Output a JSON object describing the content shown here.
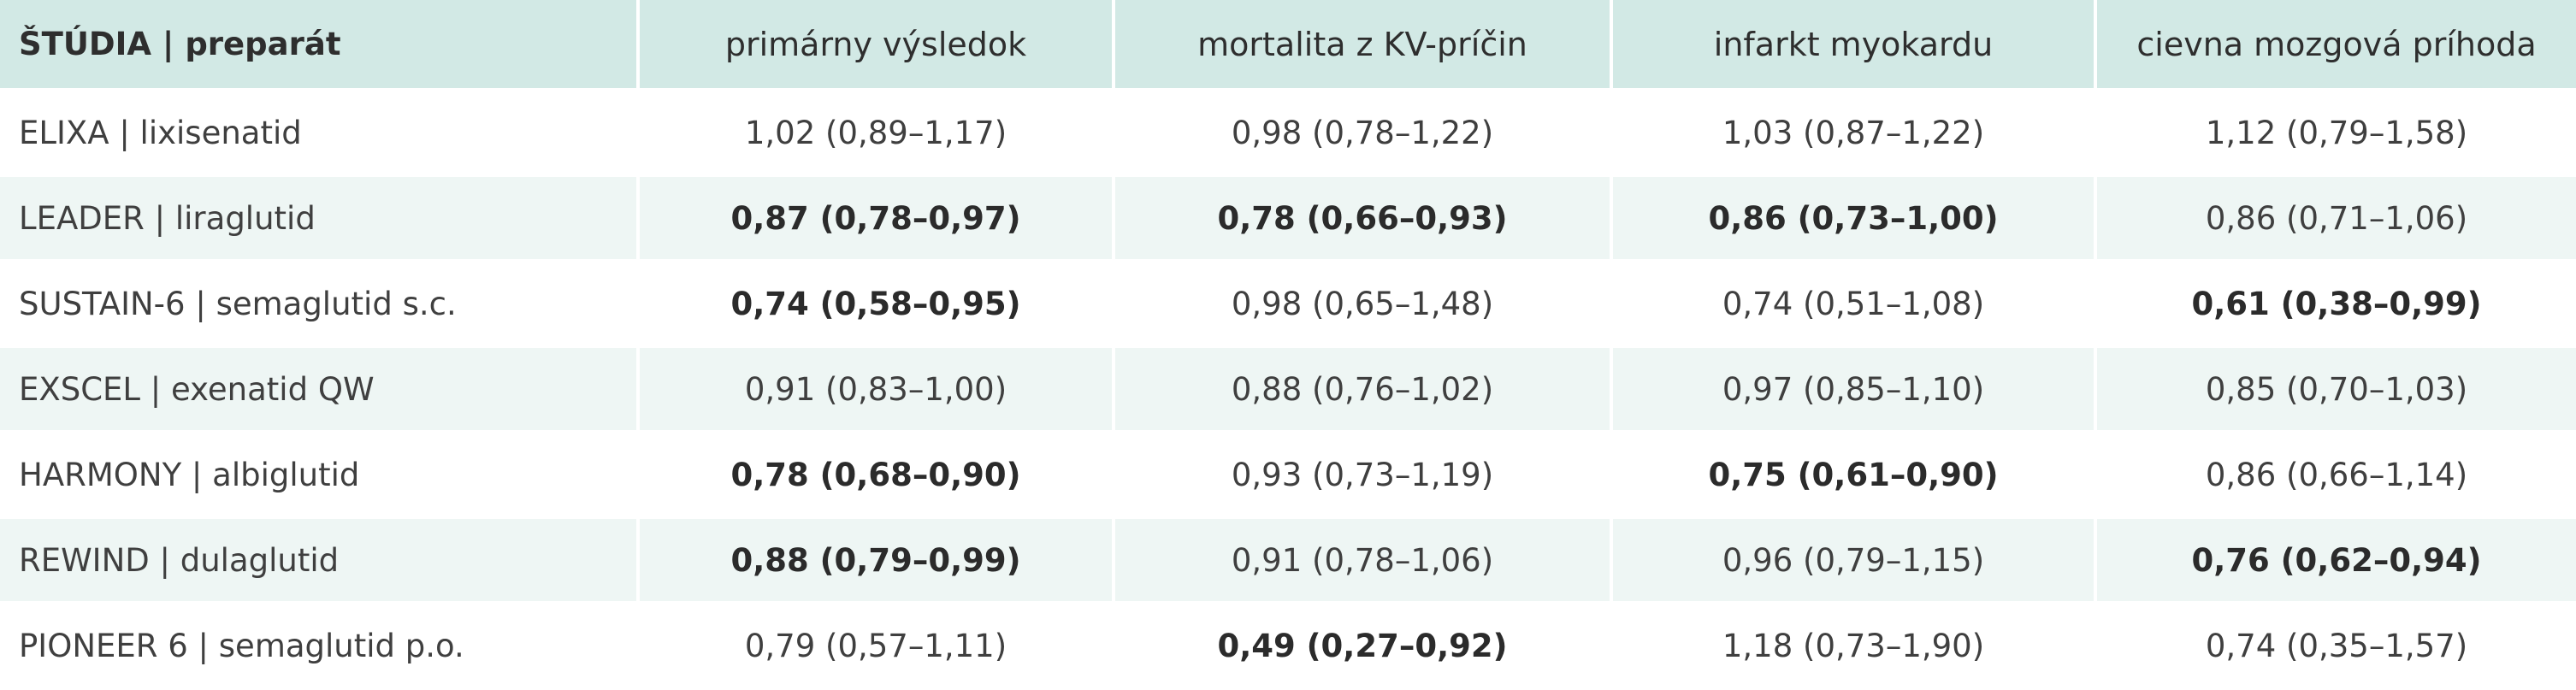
{
  "table": {
    "headers": [
      "ŠTÚDIA | preparát",
      "primárny výsledok",
      "mortalita z KV-príčin",
      "infarkt myokardu",
      "cievna mozgová príhoda"
    ],
    "rows": [
      {
        "study": "ELIXA | lixisenatid",
        "cells": [
          {
            "text": "1,02 (0,89–1,17)",
            "bold": false
          },
          {
            "text": "0,98 (0,78–1,22)",
            "bold": false
          },
          {
            "text": "1,03 (0,87–1,22)",
            "bold": false
          },
          {
            "text": "1,12 (0,79–1,58)",
            "bold": false
          }
        ]
      },
      {
        "study": "LEADER | liraglutid",
        "cells": [
          {
            "text": "0,87 (0,78–0,97)",
            "bold": true
          },
          {
            "text": "0,78 (0,66–0,93)",
            "bold": true
          },
          {
            "text": "0,86 (0,73–1,00)",
            "bold": true
          },
          {
            "text": "0,86 (0,71–1,06)",
            "bold": false
          }
        ]
      },
      {
        "study": "SUSTAIN-6 | semaglutid s.c.",
        "cells": [
          {
            "text": "0,74 (0,58–0,95)",
            "bold": true
          },
          {
            "text": "0,98 (0,65–1,48)",
            "bold": false
          },
          {
            "text": "0,74 (0,51–1,08)",
            "bold": false
          },
          {
            "text": "0,61 (0,38–0,99)",
            "bold": true
          }
        ]
      },
      {
        "study": "EXSCEL | exenatid QW",
        "cells": [
          {
            "text": "0,91 (0,83–1,00)",
            "bold": false
          },
          {
            "text": "0,88 (0,76–1,02)",
            "bold": false
          },
          {
            "text": "0,97 (0,85–1,10)",
            "bold": false
          },
          {
            "text": "0,85 (0,70–1,03)",
            "bold": false
          }
        ]
      },
      {
        "study": "HARMONY | albiglutid",
        "cells": [
          {
            "text": "0,78 (0,68–0,90)",
            "bold": true
          },
          {
            "text": "0,93 (0,73–1,19)",
            "bold": false
          },
          {
            "text": "0,75 (0,61–0,90)",
            "bold": true
          },
          {
            "text": "0,86 (0,66–1,14)",
            "bold": false
          }
        ]
      },
      {
        "study": "REWIND | dulaglutid",
        "cells": [
          {
            "text": "0,88 (0,79–0,99)",
            "bold": true
          },
          {
            "text": "0,91 (0,78–1,06)",
            "bold": false
          },
          {
            "text": "0,96 (0,79–1,15)",
            "bold": false
          },
          {
            "text": "0,76 (0,62–0,94)",
            "bold": true
          }
        ]
      },
      {
        "study": "PIONEER 6 | semaglutid p.o.",
        "cells": [
          {
            "text": "0,79 (0,57–1,11)",
            "bold": false
          },
          {
            "text": "0,49 (0,27–0,92)",
            "bold": true
          },
          {
            "text": "1,18 (0,73–1,90)",
            "bold": false
          },
          {
            "text": "0,74 (0,35–1,57)",
            "bold": false
          }
        ]
      }
    ]
  },
  "colors": {
    "header_bg": "#d2e9e5",
    "row_alt_bg": "#eef6f4",
    "row_bg": "#ffffff"
  }
}
